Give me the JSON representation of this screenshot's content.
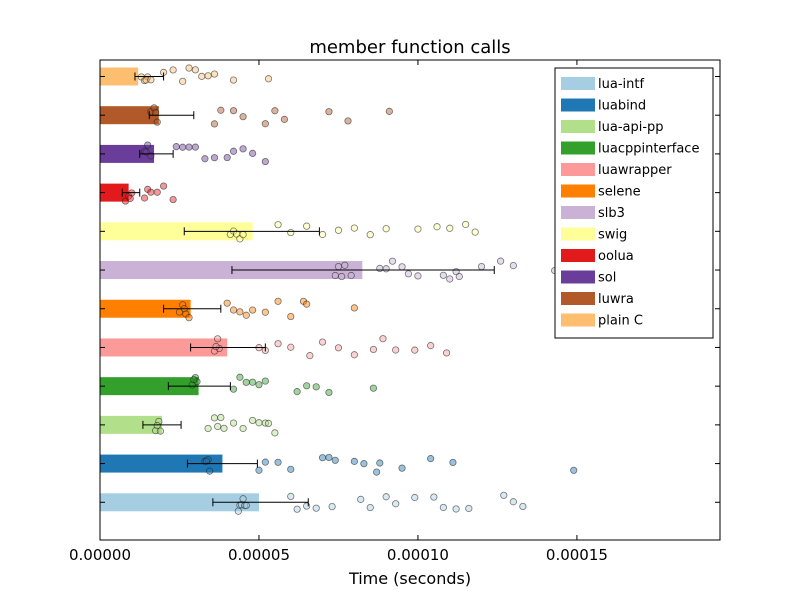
{
  "chart_data": {
    "type": "bar",
    "orientation": "horizontal",
    "title": "member function calls",
    "xlabel": "Time (seconds)",
    "ylabel": "",
    "xlim": [
      0,
      0.000195
    ],
    "xticks": [
      "0.00000",
      "0.00005",
      "0.00010",
      "0.00015"
    ],
    "xtick_values": [
      0,
      5e-05,
      0.0001,
      0.00015
    ],
    "grid": false,
    "legend_position": "top-right",
    "series": [
      {
        "name": "lua-intf",
        "color": "#a6cee3",
        "value": 5e-05,
        "err_low": 3.55e-05,
        "err_high": 6.55e-05,
        "samples": [
          4.4e-05,
          4.5e-05,
          4.45e-05,
          4.35e-05,
          4.55e-05,
          4.6e-05,
          6e-05,
          6.2e-05,
          6.5e-05,
          6.8e-05,
          7.3e-05,
          8.2e-05,
          8.5e-05,
          9e-05,
          9.3e-05,
          9.9e-05,
          0.000105,
          0.000108,
          0.000112,
          0.000116,
          0.000127,
          0.00013,
          0.000133
        ]
      },
      {
        "name": "luabind",
        "color": "#1f78b4",
        "value": 3.85e-05,
        "err_low": 2.75e-05,
        "err_high": 4.95e-05,
        "samples": [
          3.3e-05,
          3.4e-05,
          3.35e-05,
          3.45e-05,
          5e-05,
          5.2e-05,
          5.6e-05,
          6e-05,
          7e-05,
          7.2e-05,
          7.4e-05,
          8e-05,
          8.3e-05,
          8.7e-05,
          8.8e-05,
          9.5e-05,
          0.000104,
          0.000111,
          0.000149
        ]
      },
      {
        "name": "lua-api-pp",
        "color": "#b2df8a",
        "value": 1.95e-05,
        "err_low": 1.35e-05,
        "err_high": 2.55e-05,
        "samples": [
          1.75e-05,
          1.85e-05,
          1.8e-05,
          1.9e-05,
          3.4e-05,
          3.6e-05,
          3.7e-05,
          3.8e-05,
          3.9e-05,
          4.2e-05,
          4.5e-05,
          4.8e-05,
          5e-05,
          5.2e-05,
          5.3e-05,
          5.5e-05
        ]
      },
      {
        "name": "luacppinterface",
        "color": "#33a02c",
        "value": 3.1e-05,
        "err_low": 2.15e-05,
        "err_high": 4.1e-05,
        "samples": [
          2.9e-05,
          3e-05,
          3.05e-05,
          2.95e-05,
          4.2e-05,
          4.4e-05,
          4.6e-05,
          4.8e-05,
          5e-05,
          5.2e-05,
          6.2e-05,
          6.5e-05,
          6.8e-05,
          7.2e-05,
          8.6e-05
        ]
      },
      {
        "name": "luawrapper",
        "color": "#fb9a99",
        "value": 4e-05,
        "err_low": 2.85e-05,
        "err_high": 5.2e-05,
        "samples": [
          3.6e-05,
          3.7e-05,
          3.75e-05,
          3.65e-05,
          5e-05,
          5.2e-05,
          5.6e-05,
          6e-05,
          6.6e-05,
          7e-05,
          7.5e-05,
          8e-05,
          8.6e-05,
          8.9e-05,
          9.3e-05,
          9.9e-05,
          0.000104,
          0.000109
        ]
      },
      {
        "name": "selene",
        "color": "#ff7f00",
        "value": 2.85e-05,
        "err_low": 2e-05,
        "err_high": 3.8e-05,
        "samples": [
          2.5e-05,
          2.6e-05,
          2.7e-05,
          2.8e-05,
          2.65e-05,
          4e-05,
          4.2e-05,
          4.4e-05,
          4.6e-05,
          4.8e-05,
          5.2e-05,
          5.6e-05,
          6e-05,
          6.4e-05,
          6.5e-05,
          8e-05
        ]
      },
      {
        "name": "slb3",
        "color": "#cab2d6",
        "value": 8.25e-05,
        "err_low": 4.15e-05,
        "err_high": 0.000124,
        "samples": [
          7.4e-05,
          7.5e-05,
          7.6e-05,
          7.7e-05,
          7.9e-05,
          8.8e-05,
          9e-05,
          9.2e-05,
          9.5e-05,
          9.7e-05,
          0.0001,
          0.000108,
          0.00011,
          0.000112,
          0.000113,
          0.00012,
          0.000126,
          0.00013,
          0.000143,
          0.000175,
          0.000189
        ]
      },
      {
        "name": "swig",
        "color": "#ffff99",
        "value": 4.8e-05,
        "err_low": 2.65e-05,
        "err_high": 6.9e-05,
        "samples": [
          4.1e-05,
          4.2e-05,
          4.3e-05,
          4.4e-05,
          4.5e-05,
          5.6e-05,
          6e-05,
          6.5e-05,
          7e-05,
          7.5e-05,
          8e-05,
          8.5e-05,
          9e-05,
          0.0001,
          0.000106,
          0.00011,
          0.000115,
          0.000118
        ]
      },
      {
        "name": "oolua",
        "color": "#e31a1c",
        "value": 9e-06,
        "err_low": 7e-06,
        "err_high": 1.25e-05,
        "samples": [
          8e-06,
          9e-06,
          1e-05,
          9.5e-06,
          1.4e-05,
          1.5e-05,
          1.6e-05,
          1.8e-05,
          2e-05,
          2.3e-05
        ]
      },
      {
        "name": "sol",
        "color": "#6a3d9a",
        "value": 1.7e-05,
        "err_low": 1.25e-05,
        "err_high": 2.3e-05,
        "samples": [
          1.4e-05,
          1.5e-05,
          1.6e-05,
          1.45e-05,
          2.4e-05,
          2.6e-05,
          2.8e-05,
          3e-05,
          3.3e-05,
          3.6e-05,
          4e-05,
          4.2e-05,
          4.5e-05,
          4.8e-05,
          5.2e-05
        ]
      },
      {
        "name": "luwra",
        "color": "#b15928",
        "value": 1.85e-05,
        "err_low": 1.55e-05,
        "err_high": 2.95e-05,
        "samples": [
          1.6e-05,
          1.7e-05,
          1.8e-05,
          1.75e-05,
          3.6e-05,
          3.8e-05,
          4.2e-05,
          4.5e-05,
          5.2e-05,
          5.5e-05,
          5.8e-05,
          7.2e-05,
          7.8e-05,
          9.1e-05
        ]
      },
      {
        "name": "plain C",
        "color": "#fdbf6f",
        "value": 1.2e-05,
        "err_low": 1.1e-05,
        "err_high": 2e-05,
        "samples": [
          1.3e-05,
          1.4e-05,
          1.5e-05,
          1.45e-05,
          1.6e-05,
          2e-05,
          2.3e-05,
          2.6e-05,
          2.8e-05,
          3e-05,
          3.2e-05,
          3.4e-05,
          3.6e-05,
          4.2e-05,
          5.3e-05
        ]
      }
    ]
  }
}
